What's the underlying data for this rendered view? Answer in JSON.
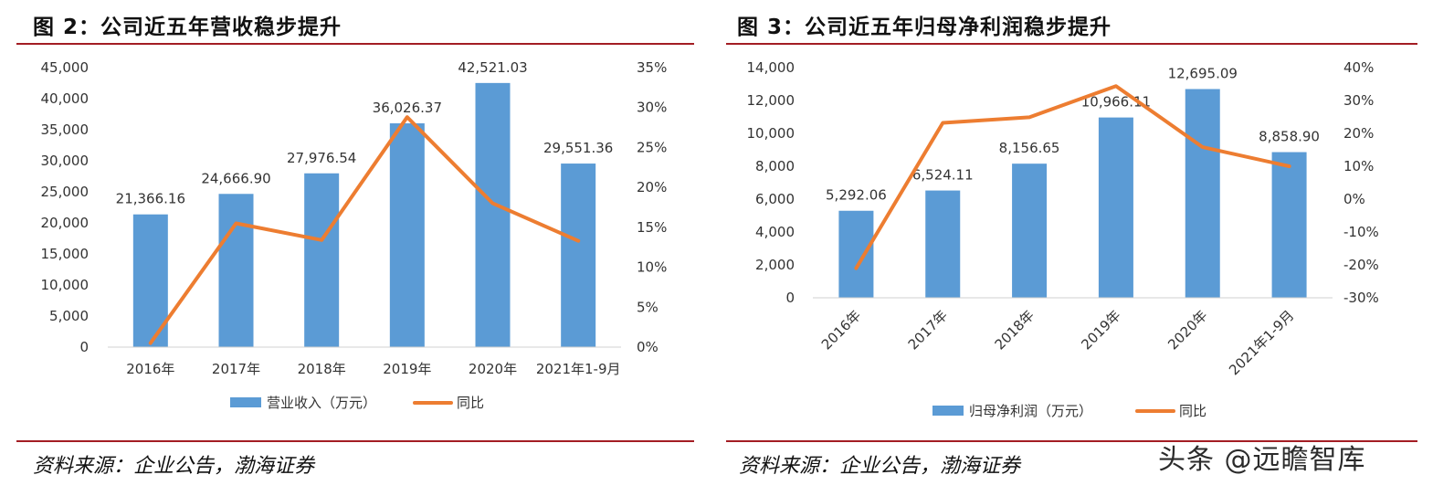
{
  "figures": [
    {
      "title": "图 2：公司近五年营收稳步提升",
      "source": "资料来源：企业公告，渤海证券"
    },
    {
      "title": "图 3：公司近五年归母净利润稳步提升",
      "source": "资料来源：企业公告，渤海证券"
    }
  ],
  "watermark": "头条 @远瞻智库",
  "colors": {
    "bar": "#5b9bd5",
    "line": "#ed7d31",
    "rule": "#a31d24"
  },
  "chart_data": [
    {
      "type": "bar",
      "title": "图 2：公司近五年营收稳步提升",
      "categories": [
        "2016年",
        "2017年",
        "2018年",
        "2019年",
        "2020年",
        "2021年1-9月"
      ],
      "series": [
        {
          "name": "营业收入（万元）",
          "type": "bar",
          "axis": "left",
          "values": [
            21366.16,
            24666.9,
            27976.54,
            36026.37,
            42521.03,
            29551.36
          ]
        },
        {
          "name": "同比",
          "type": "line",
          "axis": "right",
          "values": [
            0.5,
            15.5,
            13.4,
            28.8,
            18.0,
            13.3
          ]
        }
      ],
      "data_labels": [
        "21,366.16",
        "24,666.90",
        "27,976.54",
        "36,026.37",
        "42,521.03",
        "29,551.36"
      ],
      "ylim": [
        0,
        45000
      ],
      "y_ticks": [
        0,
        5000,
        10000,
        15000,
        20000,
        25000,
        30000,
        35000,
        40000,
        45000
      ],
      "y_tick_labels": [
        "0",
        "5,000",
        "10,000",
        "15,000",
        "20,000",
        "25,000",
        "30,000",
        "35,000",
        "40,000",
        "45,000"
      ],
      "y2lim": [
        0,
        35
      ],
      "y2_ticks": [
        0,
        5,
        10,
        15,
        20,
        25,
        30,
        35
      ],
      "y2_tick_labels": [
        "0%",
        "5%",
        "10%",
        "15%",
        "20%",
        "25%",
        "30%",
        "35%"
      ],
      "legend_position": "bottom",
      "grid": false,
      "xlabel_rotation": 0
    },
    {
      "type": "bar",
      "title": "图 3：公司近五年归母净利润稳步提升",
      "categories": [
        "2016年",
        "2017年",
        "2018年",
        "2019年",
        "2020年",
        "2021年1-9月"
      ],
      "series": [
        {
          "name": "归母净利润（万元）",
          "type": "bar",
          "axis": "left",
          "values": [
            5292.06,
            6524.11,
            8156.65,
            10966.11,
            12695.09,
            8858.9
          ]
        },
        {
          "name": "同比",
          "type": "line",
          "axis": "right",
          "values": [
            -21.0,
            23.2,
            24.9,
            34.4,
            15.8,
            10.0
          ]
        }
      ],
      "data_labels": [
        "5,292.06",
        "6,524.11",
        "8,156.65",
        "10,966.11",
        "12,695.09",
        "8,858.90"
      ],
      "ylim": [
        0,
        14000
      ],
      "y_ticks": [
        0,
        2000,
        4000,
        6000,
        8000,
        10000,
        12000,
        14000
      ],
      "y_tick_labels": [
        "0",
        "2,000",
        "4,000",
        "6,000",
        "8,000",
        "10,000",
        "12,000",
        "14,000"
      ],
      "y2lim": [
        -30,
        40
      ],
      "y2_ticks": [
        -30,
        -20,
        -10,
        0,
        10,
        20,
        30,
        40
      ],
      "y2_tick_labels": [
        "-30%",
        "-20%",
        "-10%",
        "0%",
        "10%",
        "20%",
        "30%",
        "40%"
      ],
      "legend_position": "bottom",
      "grid": false,
      "xlabel_rotation": -45
    }
  ]
}
